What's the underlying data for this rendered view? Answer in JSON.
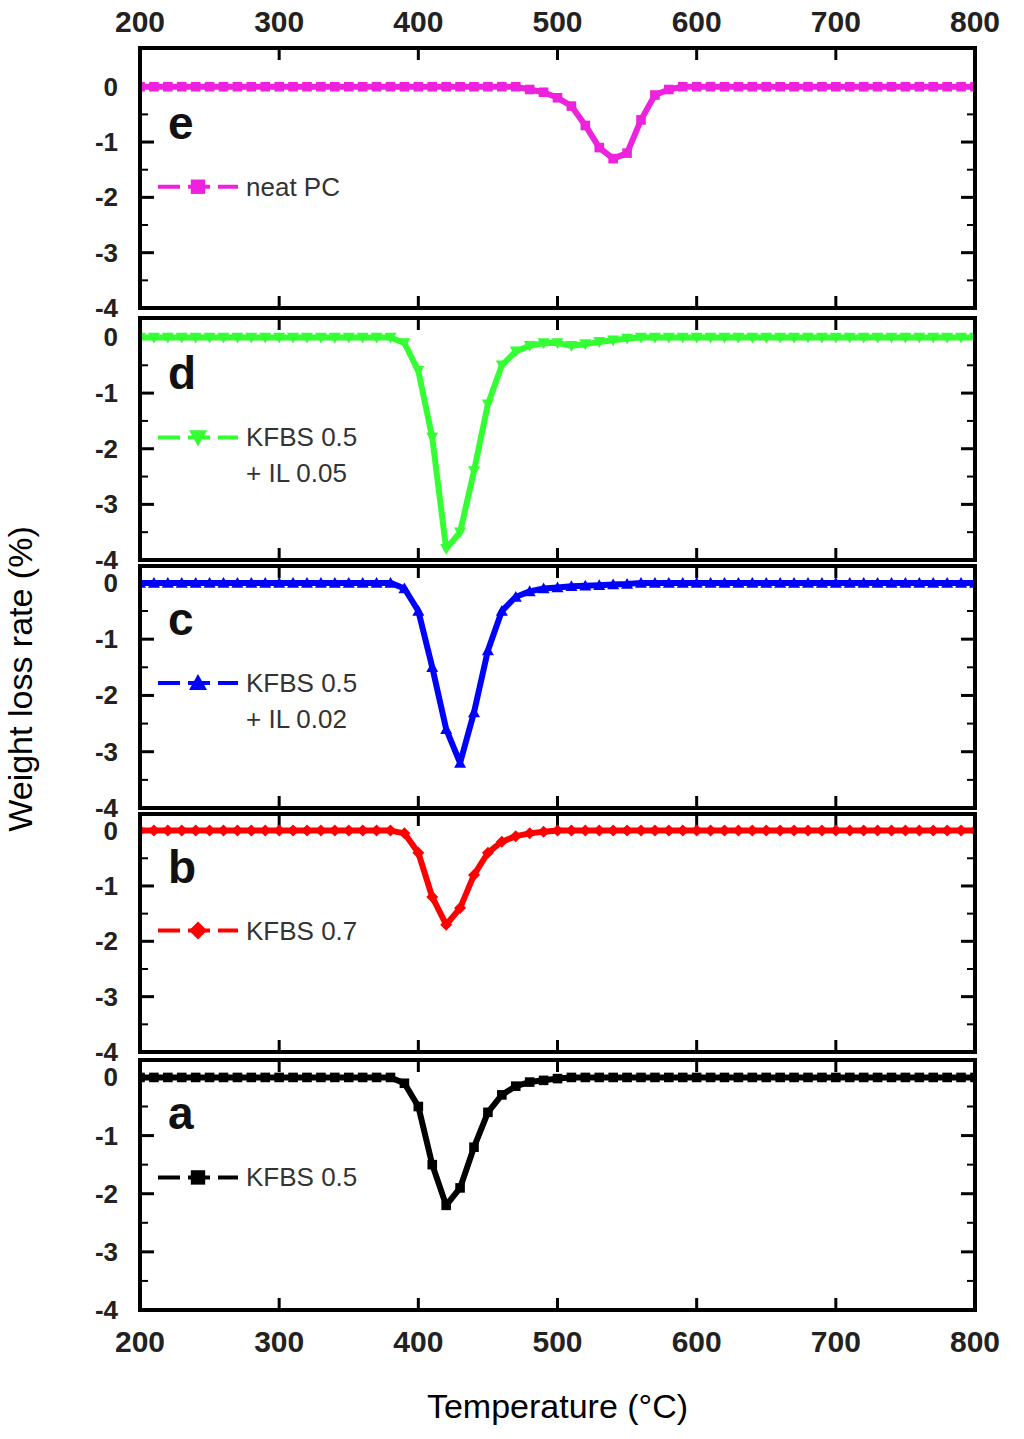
{
  "chart_data": [
    {
      "type": "line",
      "title": "e",
      "xlim": [
        200,
        800
      ],
      "ylim": [
        -4,
        0.7
      ],
      "xticks": [
        200,
        300,
        400,
        500,
        600,
        700,
        800
      ],
      "yticks": [
        0,
        -1,
        -2,
        -3,
        -4
      ],
      "legend": "upper left",
      "x": [
        200,
        210,
        220,
        230,
        240,
        250,
        260,
        270,
        280,
        290,
        300,
        310,
        320,
        330,
        340,
        350,
        360,
        370,
        380,
        390,
        400,
        410,
        420,
        430,
        440,
        450,
        460,
        470,
        480,
        490,
        500,
        510,
        520,
        530,
        540,
        550,
        560,
        570,
        580,
        590,
        600,
        610,
        620,
        630,
        640,
        650,
        660,
        670,
        680,
        690,
        700,
        710,
        720,
        730,
        740,
        750,
        760,
        770,
        780,
        790,
        800
      ],
      "series": [
        {
          "name": "neat PC",
          "color": "#ee22dd",
          "marker": "square",
          "values": [
            0,
            0,
            0,
            0,
            0,
            0,
            0,
            0,
            0,
            0,
            0,
            0,
            0,
            0,
            0,
            0,
            0,
            0,
            0,
            0,
            0,
            0,
            0,
            0,
            0,
            0,
            0,
            0,
            -0.05,
            -0.1,
            -0.2,
            -0.35,
            -0.7,
            -1.1,
            -1.3,
            -1.2,
            -0.6,
            -0.15,
            -0.05,
            0,
            0,
            0,
            0,
            0,
            0,
            0,
            0,
            0,
            0,
            0,
            0,
            0,
            0,
            0,
            0,
            0,
            0,
            0,
            0,
            0,
            0
          ]
        }
      ]
    },
    {
      "type": "line",
      "title": "d",
      "xlim": [
        200,
        800
      ],
      "ylim": [
        -4,
        0.35
      ],
      "tick_labels": "y",
      "xticks": [
        200,
        300,
        400,
        500,
        600,
        700,
        800
      ],
      "yticks": [
        0,
        -1,
        -2,
        -3,
        -4
      ],
      "legend": "upper left",
      "x": [
        200,
        210,
        220,
        230,
        240,
        250,
        260,
        270,
        280,
        290,
        300,
        310,
        320,
        330,
        340,
        350,
        360,
        370,
        380,
        390,
        400,
        410,
        420,
        430,
        440,
        450,
        460,
        470,
        480,
        490,
        500,
        510,
        520,
        530,
        540,
        550,
        560,
        570,
        580,
        590,
        600,
        610,
        620,
        630,
        640,
        650,
        660,
        670,
        680,
        690,
        700,
        710,
        720,
        730,
        740,
        750,
        760,
        770,
        780,
        790,
        800
      ],
      "series": [
        {
          "name": "KFBS 0.5\n+ IL 0.05",
          "color": "#33ff33",
          "marker": "triangle-down",
          "values": [
            0,
            0,
            0,
            0,
            0,
            0,
            0,
            0,
            0,
            0,
            0,
            0,
            0,
            0,
            0,
            0,
            0,
            0,
            0,
            -0.1,
            -0.6,
            -1.8,
            -3.8,
            -3.5,
            -2.4,
            -1.2,
            -0.5,
            -0.25,
            -0.15,
            -0.1,
            -0.1,
            -0.15,
            -0.12,
            -0.08,
            -0.05,
            -0.02,
            0,
            0,
            0,
            0,
            0,
            0,
            0,
            0,
            0,
            0,
            0,
            0,
            0,
            0,
            0,
            0,
            0,
            0,
            0,
            0,
            0,
            0,
            0,
            0,
            0
          ]
        }
      ]
    },
    {
      "type": "line",
      "title": "c",
      "xlim": [
        200,
        800
      ],
      "ylim": [
        -4,
        0.3
      ],
      "tick_labels": "y",
      "ylabel": "Weight loss rate (%)",
      "xticks": [
        200,
        300,
        400,
        500,
        600,
        700,
        800
      ],
      "yticks": [
        0,
        -1,
        -2,
        -3,
        -4
      ],
      "legend": "upper left",
      "x": [
        200,
        210,
        220,
        230,
        240,
        250,
        260,
        270,
        280,
        290,
        300,
        310,
        320,
        330,
        340,
        350,
        360,
        370,
        380,
        390,
        400,
        410,
        420,
        430,
        440,
        450,
        460,
        470,
        480,
        490,
        500,
        510,
        520,
        530,
        540,
        550,
        560,
        570,
        580,
        590,
        600,
        610,
        620,
        630,
        640,
        650,
        660,
        670,
        680,
        690,
        700,
        710,
        720,
        730,
        740,
        750,
        760,
        770,
        780,
        790,
        800
      ],
      "series": [
        {
          "name": "KFBS 0.5\n+ IL 0.02",
          "color": "#0000ff",
          "marker": "triangle-up",
          "values": [
            0,
            0,
            0,
            0,
            0,
            0,
            0,
            0,
            0,
            0,
            0,
            0,
            0,
            0,
            0,
            0,
            0,
            0,
            0,
            -0.1,
            -0.5,
            -1.5,
            -2.6,
            -3.2,
            -2.3,
            -1.2,
            -0.5,
            -0.25,
            -0.15,
            -0.1,
            -0.08,
            -0.06,
            -0.05,
            -0.04,
            -0.03,
            -0.02,
            0,
            0,
            0,
            0,
            0,
            0,
            0,
            0,
            0,
            0,
            0,
            0,
            0,
            0,
            0,
            0,
            0,
            0,
            0,
            0,
            0,
            0,
            0,
            0,
            0
          ]
        }
      ]
    },
    {
      "type": "line",
      "title": "b",
      "xlim": [
        200,
        800
      ],
      "ylim": [
        -4,
        0.3
      ],
      "tick_labels": "y",
      "xticks": [
        200,
        300,
        400,
        500,
        600,
        700,
        800
      ],
      "yticks": [
        0,
        -1,
        -2,
        -3,
        -4
      ],
      "legend": "upper left",
      "x": [
        200,
        210,
        220,
        230,
        240,
        250,
        260,
        270,
        280,
        290,
        300,
        310,
        320,
        330,
        340,
        350,
        360,
        370,
        380,
        390,
        400,
        410,
        420,
        430,
        440,
        450,
        460,
        470,
        480,
        490,
        500,
        510,
        520,
        530,
        540,
        550,
        560,
        570,
        580,
        590,
        600,
        610,
        620,
        630,
        640,
        650,
        660,
        670,
        680,
        690,
        700,
        710,
        720,
        730,
        740,
        750,
        760,
        770,
        780,
        790,
        800
      ],
      "series": [
        {
          "name": "KFBS 0.7",
          "color": "#ff0000",
          "marker": "diamond",
          "values": [
            0,
            0,
            0,
            0,
            0,
            0,
            0,
            0,
            0,
            0,
            0,
            0,
            0,
            0,
            0,
            0,
            0,
            0,
            0,
            -0.05,
            -0.4,
            -1.2,
            -1.7,
            -1.4,
            -0.8,
            -0.4,
            -0.2,
            -0.1,
            -0.05,
            -0.02,
            0,
            0,
            0,
            0,
            0,
            0,
            0,
            0,
            0,
            0,
            0,
            0,
            0,
            0,
            0,
            0,
            0,
            0,
            0,
            0,
            0,
            0,
            0,
            0,
            0,
            0,
            0,
            0,
            0,
            0,
            0
          ]
        }
      ]
    },
    {
      "type": "line",
      "title": "a",
      "xlim": [
        200,
        800
      ],
      "ylim": [
        -4,
        0.3
      ],
      "xlabel": "Temperature (°C)",
      "xticks": [
        200,
        300,
        400,
        500,
        600,
        700,
        800
      ],
      "yticks": [
        0,
        -1,
        -2,
        -3,
        -4
      ],
      "legend": "upper left",
      "x": [
        200,
        210,
        220,
        230,
        240,
        250,
        260,
        270,
        280,
        290,
        300,
        310,
        320,
        330,
        340,
        350,
        360,
        370,
        380,
        390,
        400,
        410,
        420,
        430,
        440,
        450,
        460,
        470,
        480,
        490,
        500,
        510,
        520,
        530,
        540,
        550,
        560,
        570,
        580,
        590,
        600,
        610,
        620,
        630,
        640,
        650,
        660,
        670,
        680,
        690,
        700,
        710,
        720,
        730,
        740,
        750,
        760,
        770,
        780,
        790,
        800
      ],
      "series": [
        {
          "name": "KFBS 0.5",
          "color": "#000000",
          "marker": "square",
          "values": [
            0,
            0,
            0,
            0,
            0,
            0,
            0,
            0,
            0,
            0,
            0,
            0,
            0,
            0,
            0,
            0,
            0,
            0,
            0,
            -0.1,
            -0.5,
            -1.5,
            -2.2,
            -1.9,
            -1.2,
            -0.6,
            -0.3,
            -0.15,
            -0.08,
            -0.05,
            -0.02,
            0,
            0,
            0,
            0,
            0,
            0,
            0,
            0,
            0,
            0,
            0,
            0,
            0,
            0,
            0,
            0,
            0,
            0,
            0,
            0,
            0,
            0,
            0,
            0,
            0,
            0,
            0,
            0,
            0,
            0
          ]
        }
      ]
    }
  ]
}
